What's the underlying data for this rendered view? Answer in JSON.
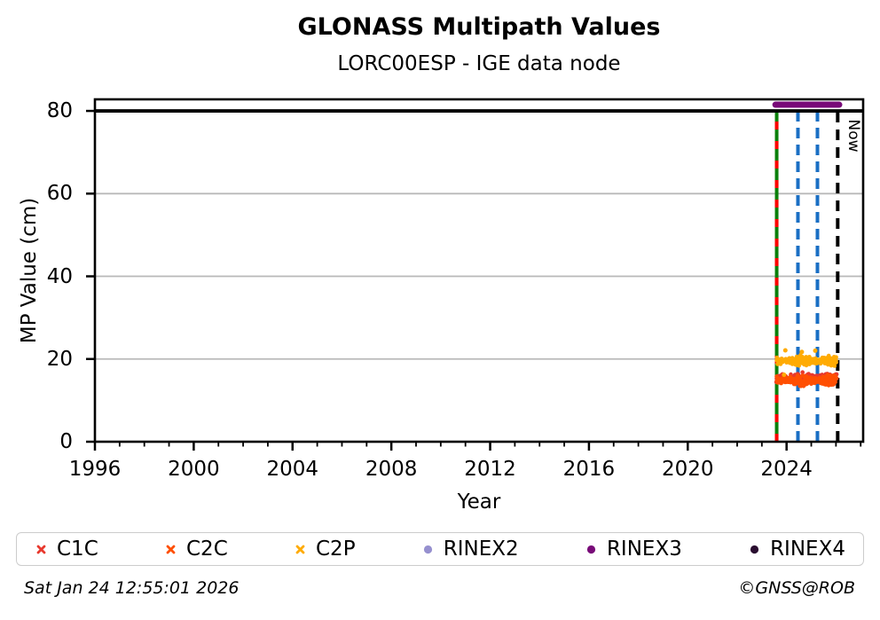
{
  "figure": {
    "title": "GLONASS Multipath Values",
    "subtitle": "LORC00ESP - IGE data node",
    "footer_left": "Sat Jan 24 12:55:01 2026",
    "footer_right": "©GNSS@ROB"
  },
  "chart_data": {
    "type": "scatter",
    "title": "GLONASS Multipath Values",
    "subtitle": "LORC00ESP - IGE data node",
    "xlabel": "Year",
    "ylabel": "MP Value (cm)",
    "xlim": [
      1996,
      2027.1
    ],
    "ylim": [
      0,
      82.8
    ],
    "xticks": [
      1996,
      2000,
      2004,
      2008,
      2012,
      2016,
      2020,
      2024
    ],
    "yticks": [
      0,
      20,
      40,
      60,
      80
    ],
    "minor_xtick_step": 1,
    "grid_y": [
      20,
      40,
      60
    ],
    "grid_color": "#b9b9b9",
    "threshold_line": {
      "y": 80,
      "color": "#000000",
      "width": 3.8
    },
    "now_label": "Now",
    "vlines": [
      {
        "name": "receiver-change-line",
        "x": 2023.6,
        "color": "#0b800b",
        "style": "solid"
      },
      {
        "name": "antenna-change-line",
        "x": 2023.6,
        "color": "#ff0000",
        "style": "dashed",
        "dash": "9 13"
      },
      {
        "name": "event-line-1",
        "x": 2024.46,
        "color": "#1a6fc4",
        "style": "dashed",
        "dash": "12 7"
      },
      {
        "name": "event-line-2",
        "x": 2025.25,
        "color": "#1a6fc4",
        "style": "dashed",
        "dash": "12 7"
      },
      {
        "name": "now-line",
        "x": 2026.07,
        "color": "#000000",
        "style": "dashed",
        "dash": "12 8"
      }
    ],
    "series": [
      {
        "name": "C1C",
        "marker": "x",
        "color": "#e8392e",
        "band": {
          "x_start": 2023.62,
          "x_end": 2026.0,
          "y_center": 15.4,
          "y_spread": 1.7
        }
      },
      {
        "name": "C2C",
        "marker": "x",
        "color": "#ff4f02",
        "band": {
          "x_start": 2023.62,
          "x_end": 2026.0,
          "y_center": 14.8,
          "y_spread": 1.6
        }
      },
      {
        "name": "C2P",
        "marker": "x",
        "color": "#ffab03",
        "band": {
          "x_start": 2023.62,
          "x_end": 2026.0,
          "y_center": 19.6,
          "y_spread": 1.5
        },
        "outliers": [
          [
            2023.95,
            22.1
          ],
          [
            2024.62,
            21.7
          ],
          [
            2025.16,
            22.0
          ],
          [
            2023.9,
            16.2
          ]
        ]
      },
      {
        "name": "RINEX2",
        "marker": "dot",
        "color": "#9690cf"
      },
      {
        "name": "RINEX3",
        "marker": "dot",
        "color": "#780a78",
        "bar": {
          "x_start": 2023.55,
          "x_end": 2026.13,
          "y": 81.5,
          "width": 7
        }
      },
      {
        "name": "RINEX4",
        "marker": "dot",
        "color": "#2a0d30"
      }
    ]
  }
}
